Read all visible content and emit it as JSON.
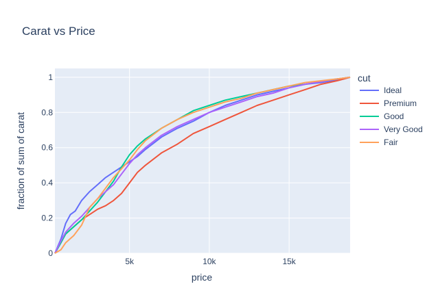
{
  "chart_data": {
    "type": "line",
    "title": "Carat vs Price",
    "xlabel": "price",
    "ylabel": "fraction of sum of carat",
    "xlim": [
      326,
      18823
    ],
    "ylim": [
      0,
      1.05
    ],
    "x_ticks": [
      {
        "value": 5000,
        "label": "5k"
      },
      {
        "value": 10000,
        "label": "10k"
      },
      {
        "value": 15000,
        "label": "15k"
      }
    ],
    "y_ticks": [
      {
        "value": 0,
        "label": "0"
      },
      {
        "value": 0.2,
        "label": "0.2"
      },
      {
        "value": 0.4,
        "label": "0.4"
      },
      {
        "value": 0.6,
        "label": "0.6"
      },
      {
        "value": 0.8,
        "label": "0.8"
      },
      {
        "value": 1,
        "label": "1"
      }
    ],
    "grid": true,
    "legend_title": "cut",
    "legend_position": "right",
    "series": [
      {
        "name": "Ideal",
        "color": "#636efa",
        "points": [
          [
            326,
            0
          ],
          [
            700,
            0.08
          ],
          [
            1000,
            0.17
          ],
          [
            1300,
            0.22
          ],
          [
            1600,
            0.24
          ],
          [
            2000,
            0.3
          ],
          [
            2500,
            0.35
          ],
          [
            3000,
            0.39
          ],
          [
            3500,
            0.43
          ],
          [
            4000,
            0.46
          ],
          [
            4500,
            0.49
          ],
          [
            5000,
            0.52
          ],
          [
            5500,
            0.55
          ],
          [
            6000,
            0.59
          ],
          [
            7000,
            0.66
          ],
          [
            8000,
            0.71
          ],
          [
            9000,
            0.75
          ],
          [
            10000,
            0.8
          ],
          [
            11000,
            0.84
          ],
          [
            12000,
            0.87
          ],
          [
            13000,
            0.9
          ],
          [
            14000,
            0.92
          ],
          [
            15000,
            0.94
          ],
          [
            16000,
            0.96
          ],
          [
            17000,
            0.97
          ],
          [
            18000,
            0.985
          ],
          [
            18823,
            1.0
          ]
        ]
      },
      {
        "name": "Premium",
        "color": "#ef553b",
        "points": [
          [
            326,
            0
          ],
          [
            700,
            0.06
          ],
          [
            1000,
            0.11
          ],
          [
            1500,
            0.15
          ],
          [
            2000,
            0.19
          ],
          [
            2500,
            0.22
          ],
          [
            3000,
            0.25
          ],
          [
            3500,
            0.27
          ],
          [
            4000,
            0.3
          ],
          [
            4500,
            0.34
          ],
          [
            5000,
            0.4
          ],
          [
            5500,
            0.46
          ],
          [
            6000,
            0.5
          ],
          [
            7000,
            0.57
          ],
          [
            8000,
            0.62
          ],
          [
            9000,
            0.68
          ],
          [
            10000,
            0.72
          ],
          [
            11000,
            0.76
          ],
          [
            12000,
            0.8
          ],
          [
            13000,
            0.84
          ],
          [
            14000,
            0.87
          ],
          [
            15000,
            0.9
          ],
          [
            16000,
            0.93
          ],
          [
            17000,
            0.96
          ],
          [
            18000,
            0.98
          ],
          [
            18823,
            1.0
          ]
        ]
      },
      {
        "name": "Good",
        "color": "#00cc96",
        "points": [
          [
            326,
            0
          ],
          [
            700,
            0.06
          ],
          [
            1000,
            0.11
          ],
          [
            1500,
            0.15
          ],
          [
            2000,
            0.19
          ],
          [
            2500,
            0.24
          ],
          [
            3000,
            0.29
          ],
          [
            3500,
            0.35
          ],
          [
            4000,
            0.41
          ],
          [
            4500,
            0.49
          ],
          [
            5000,
            0.56
          ],
          [
            5500,
            0.61
          ],
          [
            6000,
            0.65
          ],
          [
            7000,
            0.71
          ],
          [
            8000,
            0.76
          ],
          [
            9000,
            0.81
          ],
          [
            10000,
            0.84
          ],
          [
            11000,
            0.87
          ],
          [
            12000,
            0.89
          ],
          [
            13000,
            0.91
          ],
          [
            14000,
            0.93
          ],
          [
            15000,
            0.95
          ],
          [
            16000,
            0.96
          ],
          [
            17000,
            0.975
          ],
          [
            18000,
            0.99
          ],
          [
            18823,
            1.0
          ]
        ]
      },
      {
        "name": "Very Good",
        "color": "#ab63fa",
        "points": [
          [
            326,
            0
          ],
          [
            700,
            0.07
          ],
          [
            1000,
            0.12
          ],
          [
            1500,
            0.17
          ],
          [
            2000,
            0.21
          ],
          [
            2500,
            0.26
          ],
          [
            3000,
            0.31
          ],
          [
            3500,
            0.35
          ],
          [
            4000,
            0.39
          ],
          [
            4500,
            0.45
          ],
          [
            5000,
            0.51
          ],
          [
            5500,
            0.56
          ],
          [
            6000,
            0.6
          ],
          [
            7000,
            0.67
          ],
          [
            8000,
            0.72
          ],
          [
            9000,
            0.76
          ],
          [
            10000,
            0.8
          ],
          [
            11000,
            0.83
          ],
          [
            12000,
            0.86
          ],
          [
            13000,
            0.89
          ],
          [
            14000,
            0.91
          ],
          [
            15000,
            0.94
          ],
          [
            16000,
            0.96
          ],
          [
            17000,
            0.975
          ],
          [
            18000,
            0.99
          ],
          [
            18823,
            1.0
          ]
        ]
      },
      {
        "name": "Fair",
        "color": "#ffa15a",
        "points": [
          [
            326,
            0
          ],
          [
            700,
            0.02
          ],
          [
            1000,
            0.06
          ],
          [
            1500,
            0.1
          ],
          [
            2000,
            0.16
          ],
          [
            2500,
            0.26
          ],
          [
            3000,
            0.31
          ],
          [
            3500,
            0.37
          ],
          [
            4000,
            0.43
          ],
          [
            4500,
            0.48
          ],
          [
            5000,
            0.53
          ],
          [
            5500,
            0.59
          ],
          [
            6000,
            0.64
          ],
          [
            7000,
            0.71
          ],
          [
            8000,
            0.76
          ],
          [
            9000,
            0.8
          ],
          [
            10000,
            0.83
          ],
          [
            11000,
            0.86
          ],
          [
            12000,
            0.88
          ],
          [
            13000,
            0.91
          ],
          [
            14000,
            0.93
          ],
          [
            15000,
            0.95
          ],
          [
            16000,
            0.97
          ],
          [
            17000,
            0.98
          ],
          [
            18000,
            0.99
          ],
          [
            18823,
            1.0
          ]
        ]
      }
    ]
  }
}
